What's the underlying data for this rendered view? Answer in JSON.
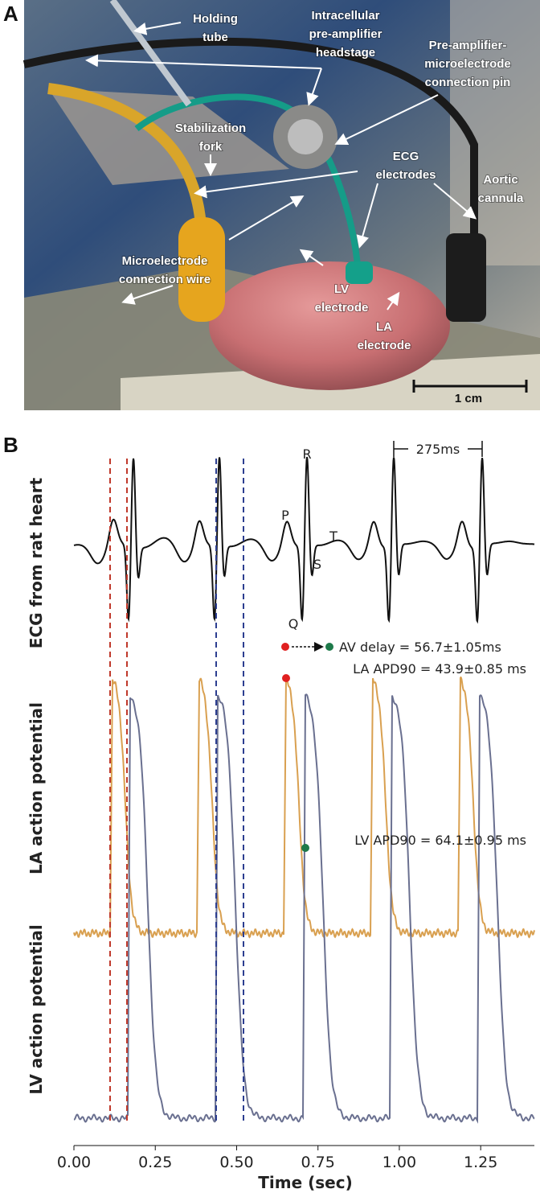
{
  "panel_a": {
    "label": "A",
    "annotations": [
      {
        "lines": [
          "Holding",
          "tube"
        ]
      },
      {
        "lines": [
          "Intracellular",
          "pre-amplifier",
          "headstage"
        ]
      },
      {
        "lines": [
          "Pre-amplifier-",
          "microelectrode",
          "connection pin"
        ]
      },
      {
        "lines": [
          "Stabilization",
          "fork"
        ]
      },
      {
        "lines": [
          "ECG",
          "electrodes"
        ]
      },
      {
        "lines": [
          "Aortic",
          "cannula"
        ]
      },
      {
        "lines": [
          "Microelectrode",
          "connection wire"
        ]
      },
      {
        "lines": [
          "LV",
          "electrode"
        ]
      },
      {
        "lines": [
          "LA",
          "electrode"
        ]
      }
    ],
    "scale_bar": "1 cm"
  },
  "panel_b": {
    "label": "B",
    "ecg": {
      "ylabel": "ECG from rat heart",
      "waves": [
        "P",
        "Q",
        "R",
        "S",
        "T"
      ],
      "interval": "275ms"
    },
    "la": {
      "ylabel": "LA action potential",
      "annotations": [
        "AV delay = 56.7±1.05ms",
        "LA APD90 = 43.9±0.85 ms"
      ]
    },
    "lv": {
      "ylabel": "LV action potential",
      "annotation": "LV APD90 = 64.1±0.95 ms"
    },
    "x_axis": {
      "title": "Time (sec)",
      "xlim": [
        0,
        1.415
      ],
      "xticks": [
        {
          "value": 0,
          "label": "0.00"
        },
        {
          "value": 0.25,
          "label": "0.25"
        },
        {
          "value": 0.5,
          "label": "0.50"
        },
        {
          "value": 0.75,
          "label": "0.75"
        },
        {
          "value": 1,
          "label": "1.00"
        },
        {
          "value": 1.25,
          "label": "1.25"
        }
      ]
    }
  }
}
